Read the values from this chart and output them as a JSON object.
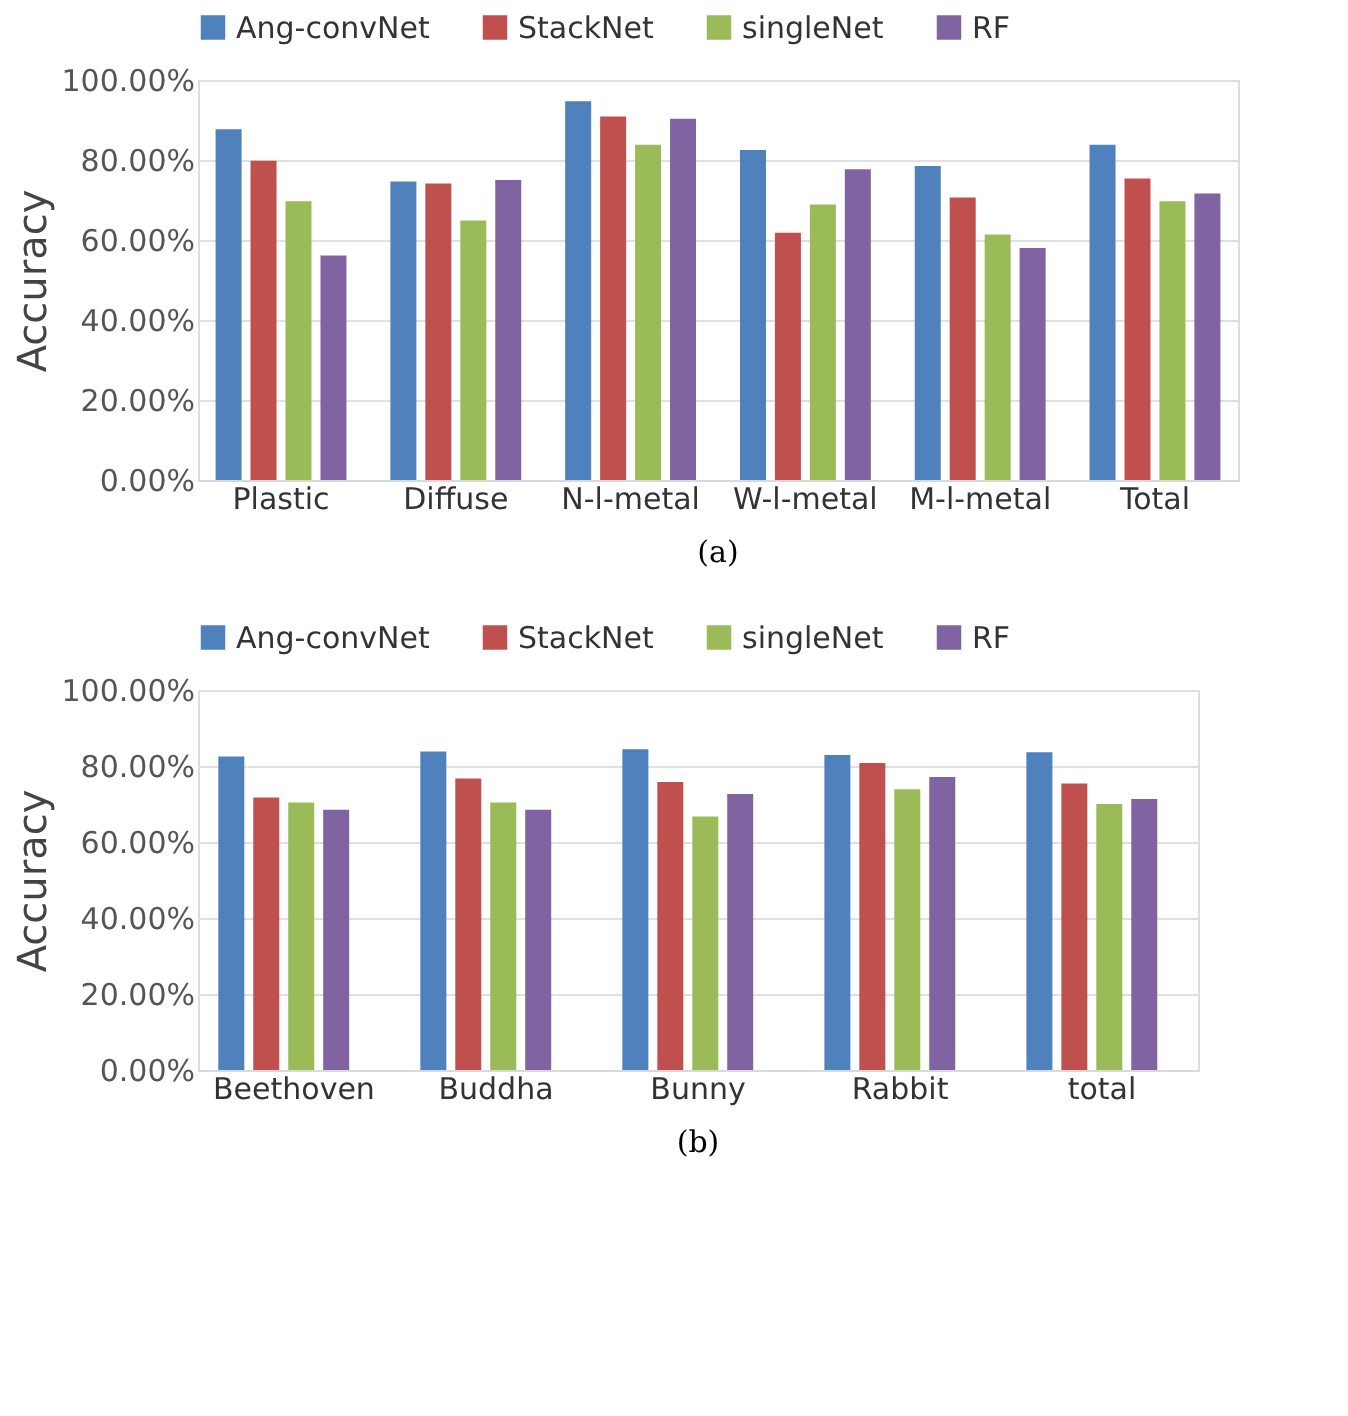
{
  "chart_data": [
    {
      "type": "bar",
      "ylabel": "Accuracy",
      "categories": [
        "Plastic",
        "Diffuse",
        "N-l-metal",
        "W-l-metal",
        "M-l-metal",
        "Total"
      ],
      "series": [
        {
          "name": "Ang-convNet",
          "color": "#4f81bd",
          "values": [
            87.7,
            74.6,
            94.7,
            82.5,
            78.5,
            83.8
          ]
        },
        {
          "name": "StackNet",
          "color": "#c0504d",
          "values": [
            79.8,
            74.1,
            90.9,
            61.8,
            70.6,
            75.4
          ]
        },
        {
          "name": "singleNet",
          "color": "#9bbb59",
          "values": [
            69.7,
            64.9,
            83.8,
            68.9,
            61.4,
            69.7
          ]
        },
        {
          "name": "RF",
          "color": "#8064a2",
          "values": [
            56.1,
            75.0,
            90.3,
            77.7,
            58.0,
            71.6
          ]
        }
      ],
      "ylim": [
        0,
        100
      ],
      "yticks": [
        {
          "value": 0,
          "label": "0.00%"
        },
        {
          "value": 20,
          "label": "20.00%"
        },
        {
          "value": 40,
          "label": "40.00%"
        },
        {
          "value": 60,
          "label": "60.00%"
        },
        {
          "value": 80,
          "label": "80.00%"
        },
        {
          "value": 100,
          "label": "100.00%"
        }
      ],
      "grid": "y",
      "legend": "top",
      "annotations": [
        "(a)"
      ]
    },
    {
      "type": "bar",
      "ylabel": "Accuracy",
      "categories": [
        "Beethoven",
        "Buddha",
        "Bunny",
        "Rabbit",
        "total"
      ],
      "series": [
        {
          "name": "Ang-convNet",
          "color": "#4f81bd",
          "values": [
            82.5,
            83.8,
            84.4,
            82.9,
            83.6
          ]
        },
        {
          "name": "StackNet",
          "color": "#c0504d",
          "values": [
            71.7,
            76.7,
            75.8,
            80.8,
            75.4
          ]
        },
        {
          "name": "singleNet",
          "color": "#9bbb59",
          "values": [
            70.4,
            70.4,
            66.7,
            73.9,
            70.0
          ]
        },
        {
          "name": "RF",
          "color": "#8064a2",
          "values": [
            68.5,
            68.5,
            72.6,
            77.1,
            71.3
          ]
        }
      ],
      "ylim": [
        0,
        100
      ],
      "yticks": [
        {
          "value": 0,
          "label": "0.00%"
        },
        {
          "value": 20,
          "label": "20.00%"
        },
        {
          "value": 40,
          "label": "40.00%"
        },
        {
          "value": 60,
          "label": "60.00%"
        },
        {
          "value": 80,
          "label": "80.00%"
        },
        {
          "value": 100,
          "label": "100.00%"
        }
      ],
      "grid": "y",
      "legend": "top",
      "annotations": [
        "(b)"
      ]
    }
  ]
}
